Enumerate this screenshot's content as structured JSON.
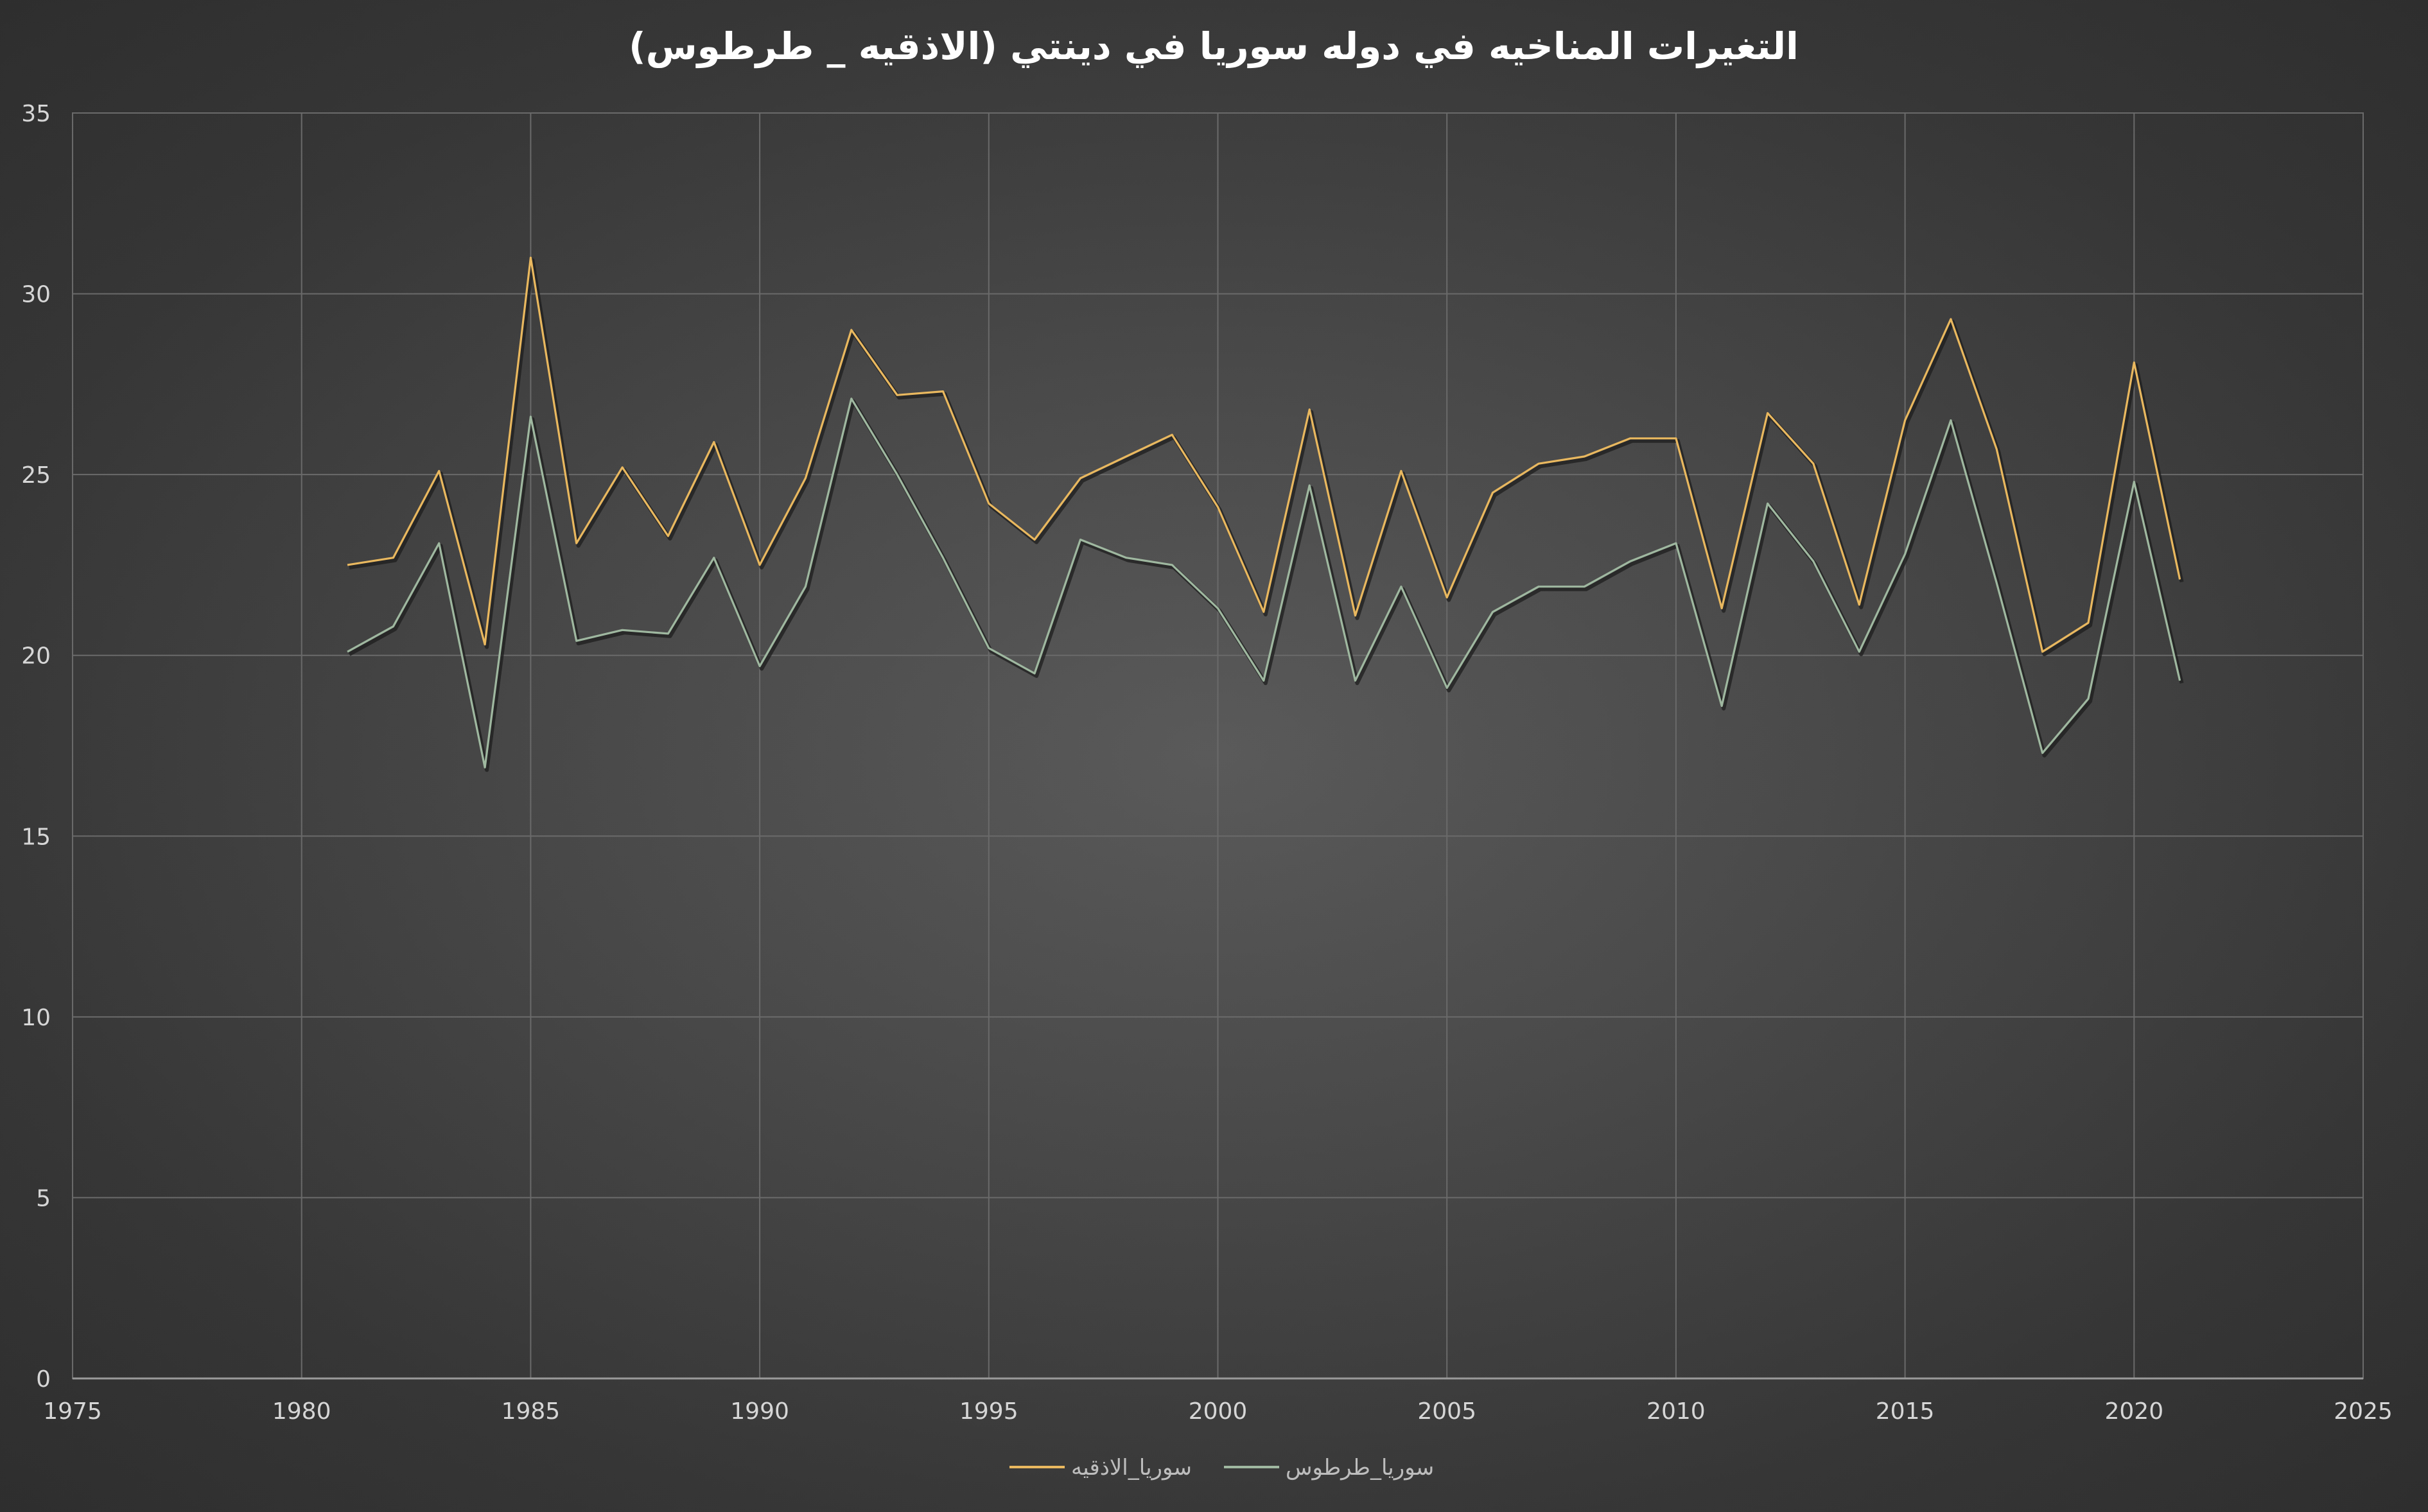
{
  "chart_data": {
    "type": "line",
    "title": "التغيرات المناخيه في دوله سوريا في دينتي (الاذقيه _ طرطوس)",
    "xlabel": "",
    "ylabel": "",
    "xlim": [
      1975,
      2025
    ],
    "ylim": [
      0,
      35
    ],
    "x_ticks": [
      1975,
      1980,
      1985,
      1990,
      1995,
      2000,
      2005,
      2010,
      2015,
      2020,
      2025
    ],
    "y_ticks": [
      0,
      5,
      10,
      15,
      20,
      25,
      30,
      35
    ],
    "grid": true,
    "legend_position": "bottom-center",
    "x": [
      1981,
      1982,
      1983,
      1984,
      1985,
      1986,
      1987,
      1988,
      1989,
      1990,
      1991,
      1992,
      1993,
      1994,
      1995,
      1996,
      1997,
      1998,
      1999,
      2000,
      2001,
      2002,
      2003,
      2004,
      2005,
      2006,
      2007,
      2008,
      2009,
      2010,
      2011,
      2012,
      2013,
      2014,
      2015,
      2016,
      2017,
      2018,
      2019,
      2020,
      2021
    ],
    "series": [
      {
        "name": "سوريا_الاذقيه",
        "color": "#e9b85f",
        "values": [
          22.5,
          22.7,
          25.1,
          20.3,
          31.0,
          23.1,
          25.2,
          23.3,
          25.9,
          22.5,
          24.9,
          29.0,
          27.2,
          27.3,
          24.2,
          23.2,
          24.9,
          25.5,
          26.1,
          24.1,
          21.2,
          26.8,
          21.1,
          25.1,
          21.6,
          24.5,
          25.3,
          25.5,
          26.0,
          26.0,
          21.3,
          26.7,
          25.3,
          21.4,
          26.5,
          29.3,
          25.7,
          20.1,
          20.9,
          28.1,
          22.1
        ]
      },
      {
        "name": "سوريا_طرطوس",
        "color": "#9fb8a0",
        "values": [
          20.1,
          20.8,
          23.1,
          16.9,
          26.6,
          20.4,
          20.7,
          20.6,
          22.7,
          19.7,
          21.9,
          27.1,
          25.0,
          22.7,
          20.2,
          19.5,
          23.2,
          22.7,
          22.5,
          21.3,
          19.3,
          24.7,
          19.3,
          21.9,
          19.1,
          21.2,
          21.9,
          21.9,
          22.6,
          23.1,
          18.6,
          24.2,
          22.6,
          20.1,
          22.8,
          26.5,
          22.0,
          17.3,
          18.8,
          24.8,
          19.3
        ]
      }
    ]
  }
}
